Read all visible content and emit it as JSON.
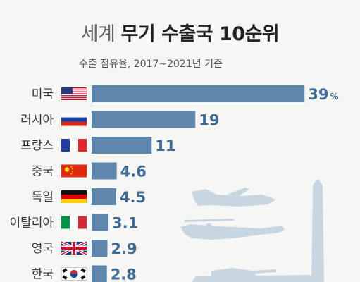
{
  "title_light": "세계",
  "title_bold": "무기 수출국 10순위",
  "subtitle": "수출 점유율, 2017~2021년 기준",
  "chart_data": {
    "type": "bar",
    "orientation": "horizontal",
    "title": "세계 무기 수출국 10순위",
    "subtitle": "수출 점유율, 2017~2021년 기준",
    "categories": [
      "미국",
      "러시아",
      "프랑스",
      "중국",
      "독일",
      "이탈리아",
      "영국",
      "한국"
    ],
    "values": [
      39,
      19,
      11,
      4.6,
      4.5,
      3.1,
      2.9,
      2.8
    ],
    "value_labels": [
      "39",
      "19",
      "11",
      "4.6",
      "4.5",
      "3.1",
      "2.9",
      "2.8"
    ],
    "unit": "%",
    "xlim": [
      0,
      40
    ],
    "grid": false,
    "legend": "none",
    "bar_color": "#5f87ad"
  },
  "flags": [
    "us-flag-icon",
    "russia-flag-icon",
    "france-flag-icon",
    "china-flag-icon",
    "germany-flag-icon",
    "italy-flag-icon",
    "uk-flag-icon",
    "korea-flag-icon"
  ]
}
